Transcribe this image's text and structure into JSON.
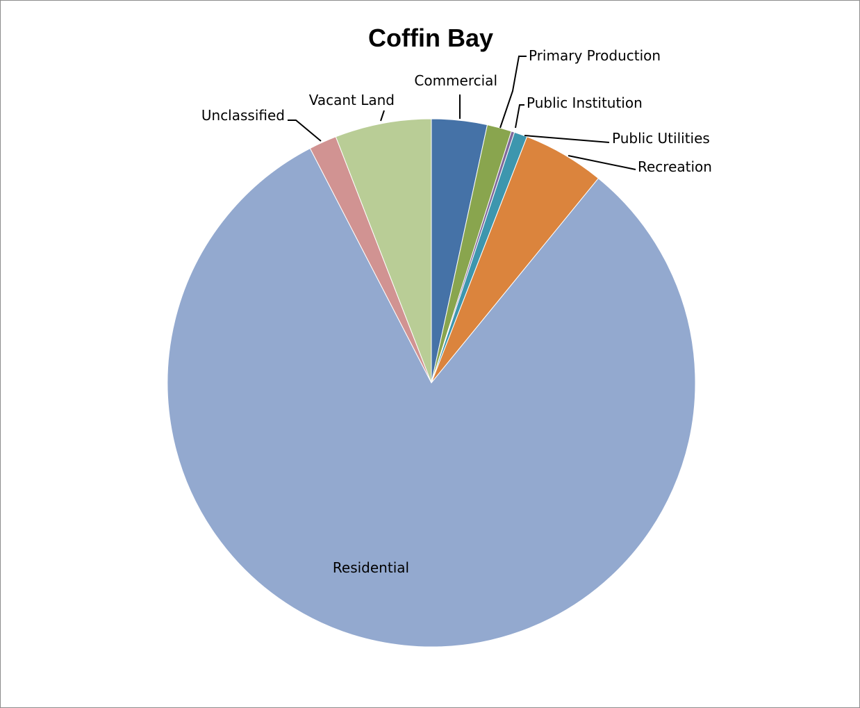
{
  "chart_data": {
    "type": "pie",
    "title": "Coffin Bay",
    "start_angle_deg": 0,
    "direction": "clockwise",
    "slices": [
      {
        "label": "Commercial",
        "value": 3.4,
        "color": "#4572A7"
      },
      {
        "label": "Primary Production",
        "value": 1.5,
        "color": "#89A54E"
      },
      {
        "label": "Public Institution",
        "value": 0.2,
        "color": "#80699B"
      },
      {
        "label": "Public Utilities",
        "value": 0.8,
        "color": "#3D96AE"
      },
      {
        "label": "Recreation",
        "value": 5.0,
        "color": "#DB843D"
      },
      {
        "label": "Residential",
        "value": 81.5,
        "color": "#93A9CF"
      },
      {
        "label": "Unclassified",
        "value": 1.7,
        "color": "#D19392"
      },
      {
        "label": "Vacant Land",
        "value": 5.9,
        "color": "#B9CD96"
      }
    ]
  }
}
